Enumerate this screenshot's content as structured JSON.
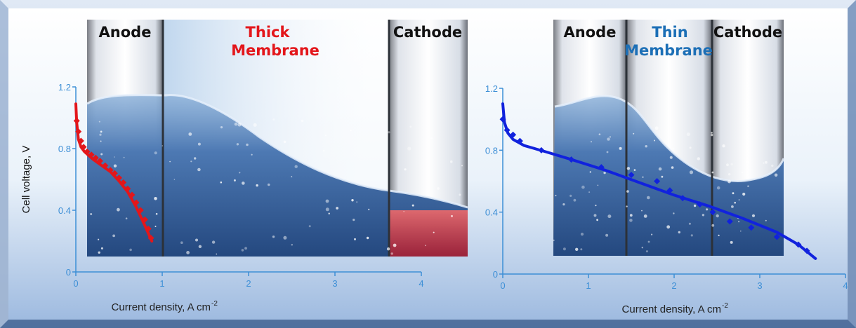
{
  "chart_data": [
    {
      "type": "scatter",
      "xlabel": "Current density, A cm",
      "xlabel_sup": "-2",
      "ylabel": "Cell voltage, V",
      "xlim": [
        0,
        4
      ],
      "ylim": [
        0,
        1.2
      ],
      "xticks": [
        "0",
        "1",
        "2",
        "3",
        "4"
      ],
      "yticks": [
        "0",
        "0.4",
        "0.8",
        "1.2"
      ],
      "regions": [
        {
          "label": "Anode",
          "x_range": [
            0.12,
            1.0
          ]
        },
        {
          "label_lines": [
            "Thick",
            "Membrane"
          ],
          "x_range": [
            1.0,
            3.62
          ]
        },
        {
          "label": "Cathode",
          "x_range": [
            3.62,
            4.45
          ]
        }
      ],
      "series": [
        {
          "color": "#e3161b",
          "fit_curve": {
            "x": [
              0.0,
              0.01,
              0.03,
              0.06,
              0.1,
              0.2,
              0.3,
              0.4,
              0.5,
              0.6,
              0.7,
              0.8,
              0.88
            ],
            "y": [
              1.09,
              0.97,
              0.86,
              0.81,
              0.78,
              0.73,
              0.69,
              0.65,
              0.59,
              0.52,
              0.42,
              0.3,
              0.2
            ]
          },
          "points": {
            "x": [
              0.01,
              0.03,
              0.06,
              0.09,
              0.13,
              0.18,
              0.23,
              0.28,
              0.34,
              0.4,
              0.45,
              0.5,
              0.55,
              0.6,
              0.65,
              0.7,
              0.75,
              0.8,
              0.84,
              0.87
            ],
            "y": [
              0.98,
              0.91,
              0.85,
              0.81,
              0.78,
              0.76,
              0.74,
              0.72,
              0.69,
              0.66,
              0.64,
              0.61,
              0.58,
              0.54,
              0.5,
              0.45,
              0.4,
              0.34,
              0.28,
              0.22
            ]
          }
        }
      ]
    },
    {
      "type": "scatter",
      "xlabel": "Current density, A cm",
      "xlabel_sup": "-2",
      "xlim": [
        0,
        4
      ],
      "ylim": [
        0,
        1.2
      ],
      "xticks": [
        "0",
        "1",
        "2",
        "3",
        "4"
      ],
      "yticks": [
        "0",
        "0.4",
        "0.8",
        "1.2"
      ],
      "regions": [
        {
          "label": "Anode",
          "x_range": [
            0.6,
            1.45
          ]
        },
        {
          "label_lines": [
            "Thin",
            "Membrane"
          ],
          "x_range": [
            1.45,
            2.45
          ]
        },
        {
          "label": "Cathode",
          "x_range": [
            2.45,
            3.28
          ]
        }
      ],
      "series": [
        {
          "color": "#1122dd",
          "fit_curve": {
            "x": [
              0.0,
              0.02,
              0.06,
              0.12,
              0.25,
              0.5,
              0.8,
              1.2,
              1.6,
              2.0,
              2.4,
              2.8,
              3.2,
              3.45,
              3.65
            ],
            "y": [
              1.1,
              0.98,
              0.91,
              0.87,
              0.83,
              0.79,
              0.74,
              0.67,
              0.59,
              0.51,
              0.44,
              0.36,
              0.27,
              0.19,
              0.1
            ]
          },
          "points": {
            "x": [
              0.0,
              0.05,
              0.12,
              0.2,
              0.45,
              0.8,
              1.15,
              1.5,
              1.8,
              1.95,
              2.1,
              2.3,
              2.45,
              2.65,
              2.9,
              3.2,
              3.45,
              3.55
            ],
            "y": [
              1.0,
              0.93,
              0.9,
              0.86,
              0.8,
              0.74,
              0.69,
              0.64,
              0.6,
              0.54,
              0.49,
              0.45,
              0.4,
              0.34,
              0.3,
              0.24,
              0.19,
              0.15
            ]
          }
        }
      ]
    }
  ],
  "colors": {
    "thick_label": "#e3161b",
    "thin_label": "#1c6fb6",
    "segment_text": "#111111",
    "axis": "#3d8fd6"
  }
}
